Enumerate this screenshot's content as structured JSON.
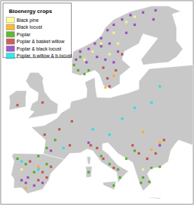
{
  "chart_data": {
    "type": "scatter",
    "legend_title": "Bioenergy crops",
    "legend": "top-left",
    "tick_labels": false,
    "marker": "square",
    "xlim": [
      -12,
      34
    ],
    "ylim": [
      34,
      72
    ],
    "series": [
      {
        "name": "Black pine",
        "color": "#ffff80",
        "values": [
          [
            18,
            68
          ],
          [
            15,
            66
          ],
          [
            12,
            64
          ],
          [
            10,
            62.5
          ],
          [
            8,
            61
          ],
          [
            16,
            64
          ],
          [
            14,
            62
          ],
          [
            20,
            69
          ],
          [
            -7,
            40.5
          ],
          [
            22,
            40.5
          ]
        ]
      },
      {
        "name": "Black locust",
        "color": "#ffaa00",
        "values": [
          [
            26,
            45.5
          ],
          [
            22,
            47.5
          ],
          [
            24,
            44.2
          ],
          [
            -6,
            37
          ],
          [
            15,
            58
          ],
          [
            13,
            55.8
          ],
          [
            -3,
            41
          ]
        ]
      },
      {
        "name": "Poplar",
        "color": "#38a800",
        "values": [
          [
            5.5,
            60
          ],
          [
            6.5,
            59
          ],
          [
            8,
            58.3
          ],
          [
            7,
            61.5
          ],
          [
            9,
            59
          ],
          [
            -8,
            42.5
          ],
          [
            -4,
            40
          ],
          [
            -6,
            41.5
          ],
          [
            -3,
            43
          ],
          [
            -1,
            41.5
          ],
          [
            12,
            43
          ],
          [
            14,
            41.5
          ],
          [
            16,
            40.5
          ],
          [
            16.5,
            39
          ],
          [
            15,
            37.5
          ],
          [
            9,
            40
          ],
          [
            22,
            39
          ],
          [
            21.5,
            38
          ],
          [
            23.5,
            38.2
          ],
          [
            24,
            40.8
          ],
          [
            26,
            41
          ],
          [
            -1,
            44.5
          ],
          [
            1,
            46
          ],
          [
            18,
            42.5
          ],
          [
            20,
            44
          ]
        ]
      },
      {
        "name": "Poplar & basket willow",
        "color": "#c0392b",
        "values": [
          [
            14,
            56
          ],
          [
            13.5,
            57.5
          ],
          [
            15.5,
            59
          ],
          [
            12.5,
            59.5
          ],
          [
            17,
            62
          ],
          [
            -2,
            40
          ],
          [
            -3,
            38.5
          ],
          [
            -1,
            39
          ],
          [
            0,
            41
          ],
          [
            -5,
            42
          ],
          [
            11,
            44.5
          ],
          [
            12.5,
            42.5
          ],
          [
            15,
            40.8
          ],
          [
            9.5,
            45
          ],
          [
            19.5,
            45
          ],
          [
            21,
            43.5
          ],
          [
            23,
            42.5
          ],
          [
            25,
            43.5
          ],
          [
            4.5,
            45
          ],
          [
            -1.5,
            47
          ],
          [
            5,
            49.5
          ],
          [
            2,
            48
          ],
          [
            27,
            46
          ],
          [
            -2,
            53
          ],
          [
            -8,
            52.5
          ]
        ]
      },
      {
        "name": "Poplar & black locust",
        "color": "#8e2dbf",
        "values": [
          [
            6,
            61
          ],
          [
            7,
            62.5
          ],
          [
            9,
            63
          ],
          [
            10.5,
            64
          ],
          [
            12,
            65
          ],
          [
            13.5,
            66.5
          ],
          [
            15,
            67.5
          ],
          [
            17,
            68.5
          ],
          [
            19,
            69.3
          ],
          [
            22,
            69.8
          ],
          [
            25,
            70.2
          ],
          [
            16,
            62.5
          ],
          [
            14,
            64
          ],
          [
            13,
            61
          ],
          [
            15,
            60.5
          ],
          [
            12,
            63.5
          ],
          [
            18,
            66
          ],
          [
            20,
            67.5
          ],
          [
            8.5,
            60.5
          ],
          [
            11,
            61.5
          ],
          [
            24.5,
            68.5
          ],
          [
            -6,
            38
          ],
          [
            -4,
            37.5
          ],
          [
            -5.5,
            39
          ],
          [
            -7,
            38.5
          ],
          [
            -2,
            38
          ],
          [
            9,
            45.5
          ],
          [
            0,
            44
          ],
          [
            26,
            45
          ]
        ]
      },
      {
        "name": "Poplar, b.willow & b.locust",
        "color": "#00e5e5",
        "values": [
          [
            -3,
            40.5
          ],
          [
            20,
            52
          ],
          [
            17,
            50
          ],
          [
            10,
            48
          ],
          [
            3,
            44.5
          ],
          [
            -7,
            42
          ],
          [
            24,
            53
          ],
          [
            26,
            56
          ],
          [
            14,
            47
          ]
        ]
      }
    ]
  }
}
